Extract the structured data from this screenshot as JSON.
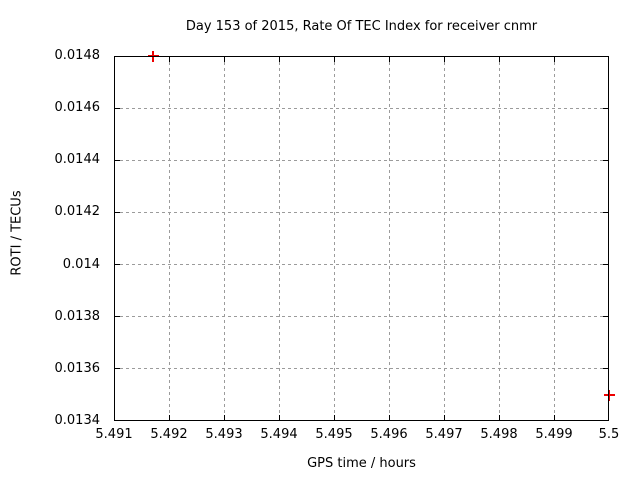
{
  "page": {
    "background": "#ffffff",
    "text_color": "#000000"
  },
  "chart_data": {
    "type": "scatter",
    "title": "Day 153 of 2015, Rate Of TEC Index for receiver cnmr",
    "xlabel": "GPS time / hours",
    "ylabel": "ROTI / TECUs",
    "xlim": [
      5.491,
      5.5
    ],
    "ylim": [
      0.0134,
      0.0148
    ],
    "xticks": [
      5.491,
      5.492,
      5.493,
      5.494,
      5.495,
      5.496,
      5.497,
      5.498,
      5.499,
      5.5
    ],
    "xtick_labels": [
      "5.491",
      "5.492",
      "5.493",
      "5.494",
      "5.495",
      "5.496",
      "5.497",
      "5.498",
      "5.499",
      "5.5"
    ],
    "yticks": [
      0.0134,
      0.0136,
      0.0138,
      0.014,
      0.0142,
      0.0144,
      0.0146,
      0.0148
    ],
    "ytick_labels": [
      "0.0134",
      "0.0136",
      "0.0138",
      "0.014",
      "0.0142",
      "0.0144",
      "0.0146",
      "0.0148"
    ],
    "grid": true,
    "grid_color": "#9b9b9b",
    "axis_color": "#000000",
    "legend": "none",
    "series": [
      {
        "marker": "plus",
        "color": "#ee0000",
        "points": [
          {
            "x": 5.4917,
            "y": 0.0148
          },
          {
            "x": 5.5,
            "y": 0.0135
          }
        ]
      }
    ]
  }
}
